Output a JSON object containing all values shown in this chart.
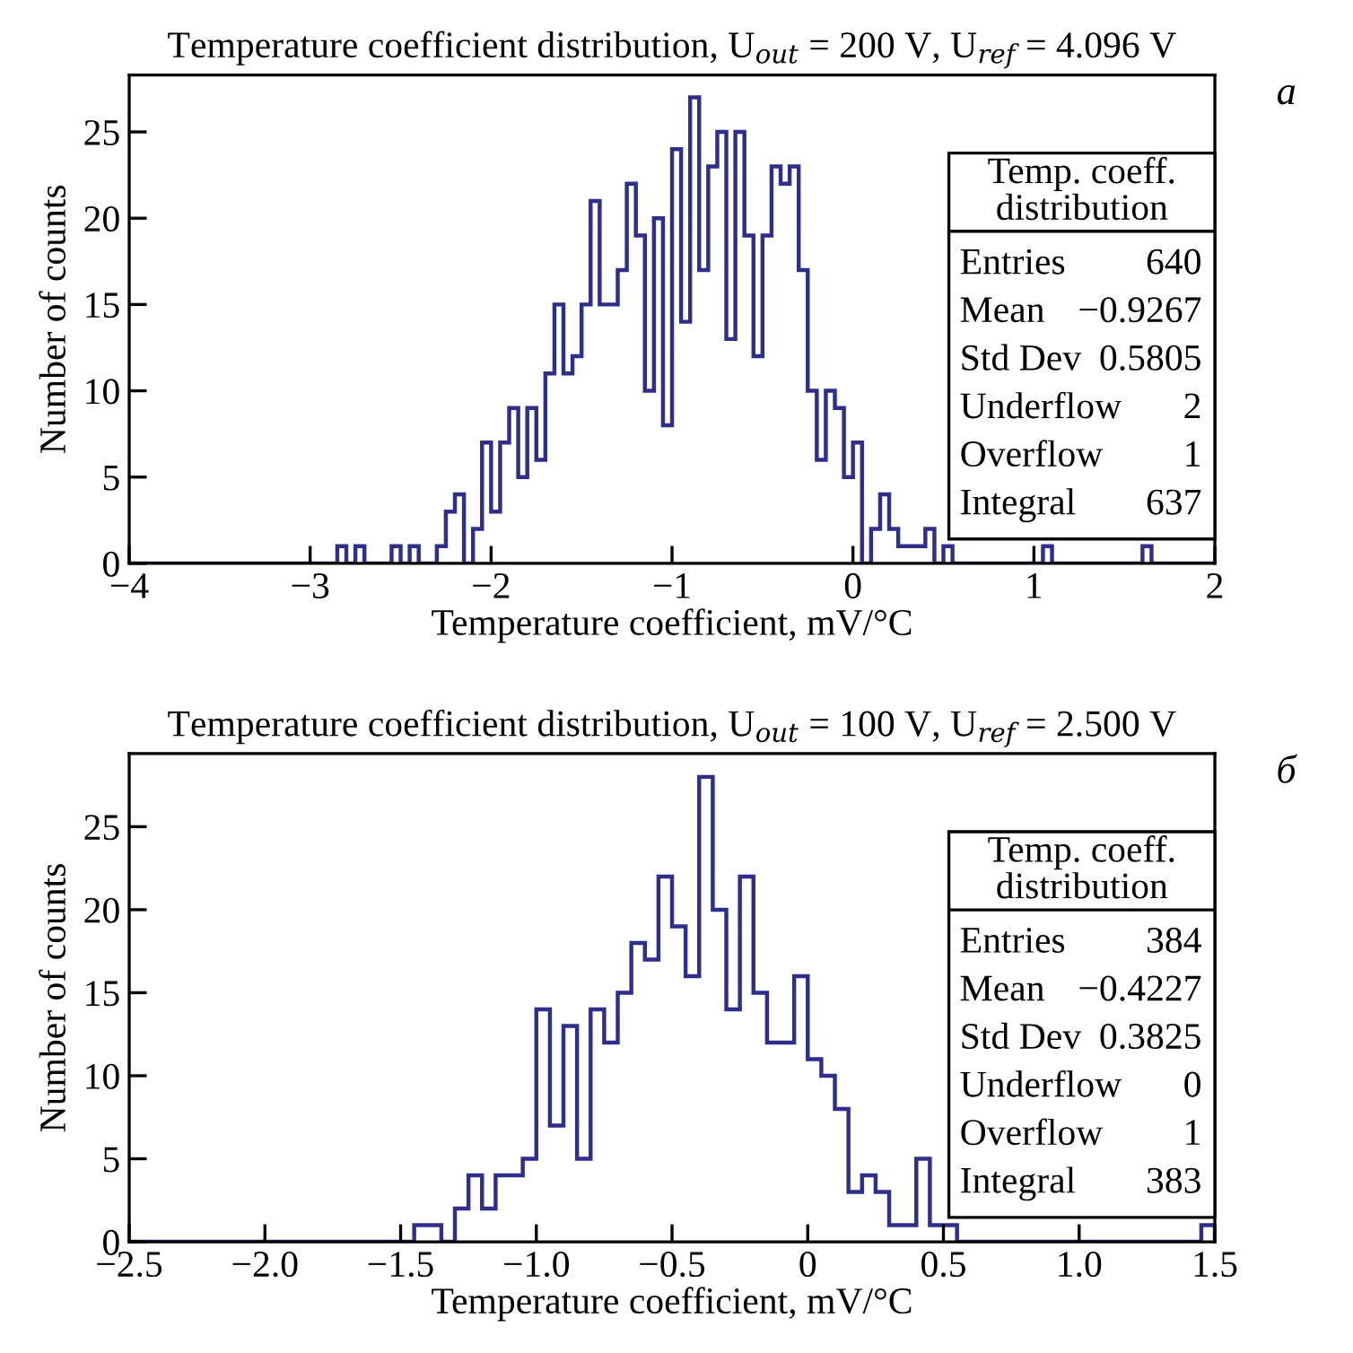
{
  "chart_data": [
    {
      "type": "histogram",
      "title": "Temperature coefficient distribution, U$_{out}$ = 200 V, U$_{ref}$ = 4.096 V",
      "xlabel": "Temperature coefficient, mV/°C",
      "ylabel": "Number of counts",
      "color": "#2e2e8c",
      "bins": [
        -4,
        -3.95,
        -3.9,
        -3.85,
        -3.8,
        -3.75,
        -3.7,
        -3.65,
        -3.6,
        -3.55,
        -3.5,
        -3.45,
        -3.4,
        -3.35,
        -3.3,
        -3.25,
        -3.2,
        -3.15,
        -3.1,
        -3.05,
        -3,
        -2.95,
        -2.9,
        -2.85,
        -2.8,
        -2.75,
        -2.7,
        -2.65,
        -2.6,
        -2.55,
        -2.5,
        -2.45,
        -2.4,
        -2.35,
        -2.3,
        -2.25,
        -2.2,
        -2.15,
        -2.1,
        -2.05,
        -2,
        -1.95,
        -1.9,
        -1.85,
        -1.8,
        -1.75,
        -1.7,
        -1.65,
        -1.6,
        -1.55,
        -1.5,
        -1.45,
        -1.4,
        -1.35,
        -1.3,
        -1.25,
        -1.2,
        -1.15,
        -1.1,
        -1.05,
        -1,
        -0.95,
        -0.9,
        -0.85,
        -0.8,
        -0.75,
        -0.7,
        -0.65,
        -0.6,
        -0.55,
        -0.5,
        -0.45,
        -0.4,
        -0.35,
        -0.3,
        -0.25,
        -0.2,
        -0.15,
        -0.1,
        -0.05,
        0,
        0.05,
        0.1,
        0.15,
        0.2,
        0.25,
        0.3,
        0.35,
        0.4,
        0.45,
        0.5,
        0.55,
        0.6,
        0.65,
        0.7,
        0.75,
        0.8,
        0.85,
        0.9,
        0.95,
        1,
        1.05,
        1.1,
        1.15,
        1.2,
        1.25,
        1.3,
        1.35,
        1.4,
        1.45,
        1.5,
        1.55,
        1.6,
        1.65,
        1.7,
        1.75,
        1.8,
        1.85,
        1.9,
        1.95,
        2
      ],
      "values": [
        0,
        0,
        0,
        0,
        0,
        0,
        0,
        0,
        0,
        0,
        0,
        0,
        0,
        0,
        0,
        0,
        0,
        0,
        0,
        0,
        0,
        0,
        0,
        1,
        0,
        1,
        0,
        0,
        0,
        1,
        0,
        1,
        0,
        0,
        1,
        3,
        4,
        0,
        2,
        7,
        3,
        7,
        9,
        5,
        9,
        6,
        11,
        15,
        11,
        12,
        15,
        21,
        15,
        15,
        17,
        22,
        19,
        10,
        20,
        8,
        24,
        14,
        27,
        17,
        23,
        25,
        13,
        25,
        19,
        12,
        19,
        23,
        22,
        23,
        17,
        10,
        6,
        10,
        9,
        5,
        7,
        0,
        2,
        4,
        2,
        1,
        1,
        1,
        2,
        0,
        1,
        0,
        0,
        0,
        0,
        0,
        0,
        0,
        0,
        0,
        0,
        1,
        0,
        0,
        0,
        0,
        0,
        0,
        0,
        0,
        0,
        0,
        1,
        0,
        0,
        0,
        0,
        0,
        0,
        0
      ],
      "xlim": [
        -4,
        2
      ],
      "xticks": [
        {
          "value": -4,
          "label": "−4"
        },
        {
          "value": -3,
          "label": "−3"
        },
        {
          "value": -2,
          "label": "−2"
        },
        {
          "value": -1,
          "label": "−1"
        },
        0,
        1,
        2
      ],
      "ylim": [
        0,
        28.3
      ],
      "yticks": [
        0,
        5,
        10,
        15,
        20,
        25
      ],
      "annotations": [
        "а",
        "Temp. coeff.\ndistribution",
        "Entries",
        "640",
        "Mean",
        "−0.9267",
        "Std Dev",
        "0.5805",
        "Underflow",
        "2",
        "Overflow",
        "1",
        "Integral",
        "637"
      ]
    },
    {
      "type": "histogram",
      "title": "Temperature coefficient distribution, U$_{out}$ = 100 V, U$_{ref}$ = 2.500 V",
      "xlabel": "Temperature coefficient, mV/°C",
      "ylabel": "Number of counts",
      "color": "#2e2e8c",
      "bins": [
        -2.5,
        -2.45,
        -2.4,
        -2.35,
        -2.3,
        -2.25,
        -2.2,
        -2.15,
        -2.1,
        -2.05,
        -2,
        -1.95,
        -1.9,
        -1.85,
        -1.8,
        -1.75,
        -1.7,
        -1.65,
        -1.6,
        -1.55,
        -1.5,
        -1.45,
        -1.4,
        -1.35,
        -1.3,
        -1.25,
        -1.2,
        -1.15,
        -1.1,
        -1.05,
        -1,
        -0.95,
        -0.9,
        -0.85,
        -0.8,
        -0.75,
        -0.7,
        -0.65,
        -0.6,
        -0.55,
        -0.5,
        -0.45,
        -0.4,
        -0.35,
        -0.3,
        -0.25,
        -0.2,
        -0.15,
        -0.1,
        -0.05,
        0,
        0.05,
        0.1,
        0.15,
        0.2,
        0.25,
        0.3,
        0.35,
        0.4,
        0.45,
        0.5,
        0.55,
        0.6,
        0.65,
        0.7,
        0.75,
        0.8,
        0.85,
        0.9,
        0.95,
        1,
        1.05,
        1.1,
        1.15,
        1.2,
        1.25,
        1.3,
        1.35,
        1.4,
        1.45,
        1.5
      ],
      "values": [
        0,
        0,
        0,
        0,
        0,
        0,
        0,
        0,
        0,
        0,
        0,
        0,
        0,
        0,
        0,
        0,
        0,
        0,
        0,
        0,
        0,
        1,
        1,
        0,
        2,
        4,
        2,
        4,
        4,
        5,
        14,
        7,
        13,
        5,
        14,
        12,
        15,
        18,
        17,
        22,
        19,
        16,
        28,
        20,
        14,
        22,
        15,
        12,
        12,
        16,
        11,
        10,
        8,
        3,
        4,
        3,
        1,
        1,
        5,
        1,
        1,
        0,
        0,
        0,
        0,
        0,
        0,
        0,
        0,
        0,
        0,
        0,
        0,
        0,
        0,
        0,
        0,
        0,
        0,
        1
      ],
      "xlim": [
        -2.5,
        1.5
      ],
      "xticks": [
        {
          "value": -2.5,
          "label": "−2.5"
        },
        {
          "value": -2,
          "label": "−2.0"
        },
        {
          "value": -1.5,
          "label": "−1.5"
        },
        {
          "value": -1,
          "label": "−1.0"
        },
        {
          "value": -0.5,
          "label": "−0.5"
        },
        {
          "value": 0,
          "label": "0"
        },
        {
          "value": 0.5,
          "label": "0.5"
        },
        {
          "value": 1,
          "label": "1.0"
        },
        {
          "value": 1.5,
          "label": "1.5"
        }
      ],
      "ylim": [
        0,
        29.4
      ],
      "yticks": [
        0,
        5,
        10,
        15,
        20,
        25
      ],
      "annotations": [
        "б",
        "Temp. coeff.\ndistribution",
        "Entries",
        "384",
        "Mean",
        "−0.4227",
        "Std Dev",
        "0.3825",
        "Underflow",
        "0",
        "Overflow",
        "1",
        "Integral",
        "383"
      ]
    }
  ]
}
